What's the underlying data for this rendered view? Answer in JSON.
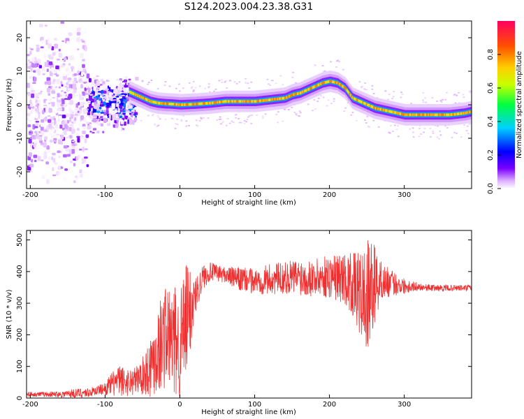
{
  "title": "S124.2023.004.23.38.G31",
  "colors": {
    "snr_line": "#f03030",
    "axis": "#000000",
    "background": "#ffffff",
    "colormap": [
      "#ffffff",
      "#d9a8ff",
      "#7a00ff",
      "#0000ff",
      "#00d0ff",
      "#00ff40",
      "#c8ff00",
      "#ffd000",
      "#ff5000",
      "#ff0060"
    ]
  },
  "chart_data": [
    {
      "type": "heatmap",
      "name": "spectrogram",
      "xlabel": "Height of straight line (km)",
      "ylabel": "Frequency (Hz)",
      "xlim": [
        -205,
        390
      ],
      "ylim": [
        -25,
        25
      ],
      "xticks": [
        -200,
        -100,
        0,
        100,
        200,
        300
      ],
      "yticks": [
        -20,
        -10,
        0,
        10,
        20
      ],
      "colorbar": {
        "label": "Normalized spectral amplitude",
        "range": [
          0,
          1
        ],
        "ticks": [
          0.0,
          0.2,
          0.4,
          0.6,
          0.8
        ]
      },
      "ridge": {
        "x": [
          -70,
          -50,
          -40,
          -30,
          -20,
          -10,
          0,
          20,
          40,
          60,
          80,
          100,
          120,
          140,
          150,
          160,
          170,
          180,
          190,
          200,
          210,
          220,
          230,
          240,
          250,
          260,
          270,
          280,
          290,
          300,
          320,
          340,
          360,
          380,
          390
        ],
        "y": [
          4,
          2,
          1,
          0.5,
          0.3,
          0.2,
          0,
          0.2,
          0.5,
          1,
          1,
          1,
          1.5,
          2,
          3,
          3.5,
          4.5,
          5.5,
          6.5,
          7,
          6.5,
          5,
          2,
          1,
          0,
          -1,
          -1.5,
          -2,
          -2.5,
          -3,
          -3,
          -3,
          -3,
          -2.5,
          -2
        ]
      },
      "noise_region": {
        "x_from": -205,
        "x_to": -60,
        "y_span": [
          -25,
          25
        ]
      }
    },
    {
      "type": "line",
      "name": "snr",
      "xlabel": "Height of straight line (km)",
      "ylabel": "SNR (10 * v/v)",
      "xlim": [
        -205,
        390
      ],
      "ylim": [
        0,
        530
      ],
      "xticks": [
        -200,
        -100,
        0,
        100,
        200,
        300
      ],
      "yticks": [
        0,
        100,
        200,
        300,
        400,
        500
      ],
      "envelope": {
        "x": [
          -205,
          -180,
          -160,
          -140,
          -120,
          -110,
          -100,
          -90,
          -80,
          -70,
          -60,
          -50,
          -40,
          -30,
          -20,
          -10,
          0,
          10,
          20,
          30,
          40,
          60,
          80,
          100,
          120,
          140,
          160,
          180,
          200,
          220,
          230,
          240,
          250,
          260,
          270,
          280,
          300,
          320,
          340,
          360,
          380,
          390
        ],
        "mean": [
          12,
          12,
          12,
          15,
          18,
          25,
          30,
          45,
          55,
          50,
          55,
          70,
          100,
          150,
          200,
          180,
          170,
          250,
          320,
          380,
          400,
          390,
          375,
          370,
          375,
          380,
          385,
          380,
          385,
          380,
          360,
          330,
          310,
          360,
          370,
          365,
          355,
          352,
          348,
          348,
          348,
          348
        ],
        "amplitude": [
          8,
          8,
          10,
          15,
          15,
          15,
          20,
          40,
          50,
          45,
          45,
          60,
          100,
          140,
          170,
          170,
          180,
          190,
          60,
          40,
          30,
          25,
          40,
          40,
          50,
          50,
          60,
          60,
          70,
          80,
          100,
          130,
          190,
          130,
          60,
          45,
          25,
          12,
          10,
          10,
          10,
          10
        ]
      }
    }
  ]
}
